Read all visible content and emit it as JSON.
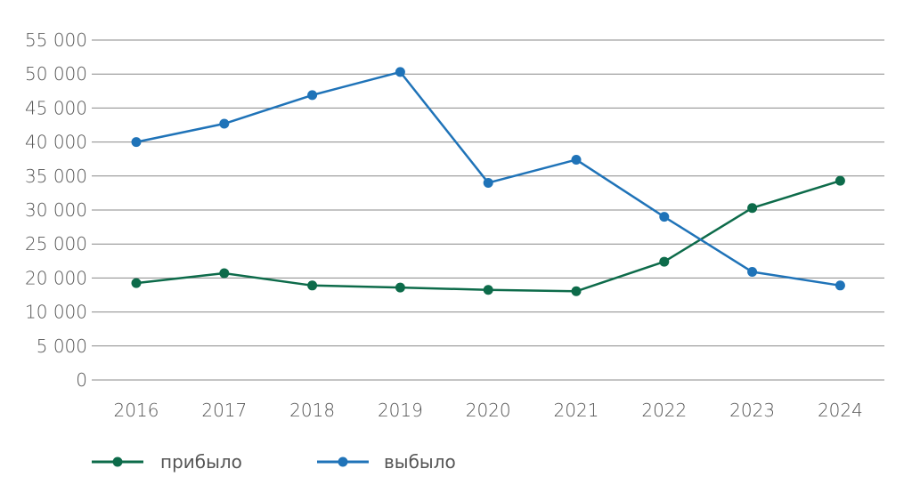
{
  "chart_data": {
    "type": "line",
    "title": "",
    "xlabel": "",
    "ylabel": "",
    "categories": [
      "2016",
      "2017",
      "2018",
      "2019",
      "2020",
      "2021",
      "2022",
      "2023",
      "2024"
    ],
    "y_tick_labels": [
      "0",
      "5 000",
      "10 000",
      "20 000",
      "25 000",
      "30 000",
      "35 000",
      "40 000",
      "45 000",
      "50 000",
      "55 000"
    ],
    "grid": true,
    "legend_position": "bottom-left",
    "series": [
      {
        "name": "прибыло",
        "color": "#0d6b4a",
        "values": [
          18500,
          20700,
          17800,
          17200,
          16500,
          16100,
          22400,
          30300,
          34300
        ]
      },
      {
        "name": "выбыло",
        "color": "#1f73b8",
        "values": [
          40000,
          42700,
          46900,
          50300,
          34000,
          37400,
          29000,
          20900,
          17800
        ]
      }
    ]
  }
}
